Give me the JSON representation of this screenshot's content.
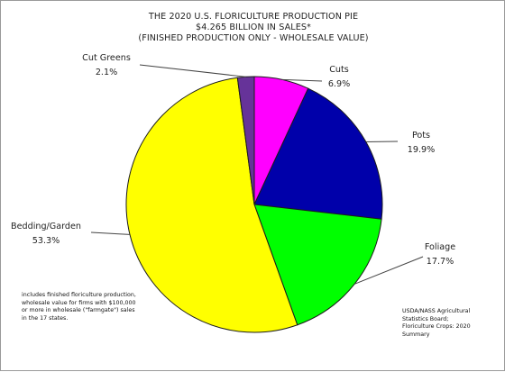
{
  "chart_data": {
    "type": "pie",
    "title_lines": [
      "THE 2020 U.S. FLORICULTURE PRODUCTION PIE",
      "$4.265 BILLION IN SALES*",
      "(FINISHED PRODUCTION ONLY - WHOLESALE VALUE)"
    ],
    "slices": [
      {
        "name": "Cuts",
        "value": 6.9,
        "label": "6.9%",
        "color": "#ff00ff"
      },
      {
        "name": "Pots",
        "value": 19.9,
        "label": "19.9%",
        "color": "#0000aa"
      },
      {
        "name": "Foliage",
        "value": 17.7,
        "label": "17.7%",
        "color": "#00ff00"
      },
      {
        "name": "Bedding/Garden",
        "value": 53.3,
        "label": "53.3%",
        "color": "#ffff00"
      },
      {
        "name": "Cut Greens",
        "value": 2.1,
        "label": "2.1%",
        "color": "#663399"
      }
    ],
    "start": "12 o'clock",
    "direction": "clockwise"
  },
  "notes": {
    "footnote": "includes finished floriculture production,\nwholesale value for firms with $100,000\nor more in wholesale (\"farmgate\") sales\nin the 17 states.",
    "source": "USDA/NASS Agricultural\nStatistics Board;\nFloriculture Crops: 2020\nSummary"
  }
}
